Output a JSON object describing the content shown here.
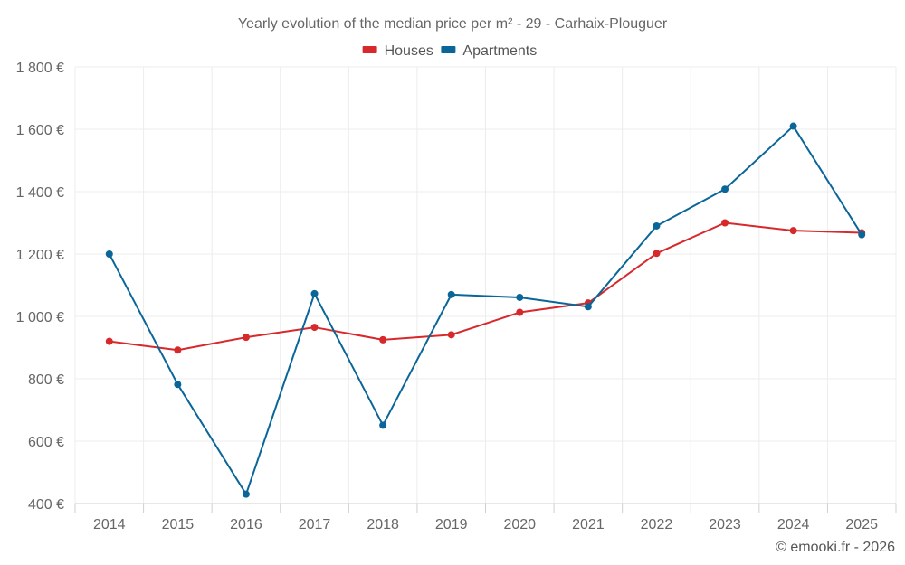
{
  "chart_data": {
    "type": "line",
    "title": "Yearly evolution of the median price per m² - 29 - Carhaix-Plouguer",
    "categories": [
      "2014",
      "2015",
      "2016",
      "2017",
      "2018",
      "2019",
      "2020",
      "2021",
      "2022",
      "2023",
      "2024",
      "2025"
    ],
    "series": [
      {
        "name": "Houses",
        "color": "#d7292c",
        "values": [
          920,
          892,
          933,
          965,
          925,
          941,
          1013,
          1043,
          1202,
          1300,
          1275,
          1268
        ]
      },
      {
        "name": "Apartments",
        "color": "#0a6699",
        "values": [
          1200,
          782,
          430,
          1073,
          651,
          1070,
          1061,
          1031,
          1290,
          1408,
          1610,
          1262
        ]
      }
    ],
    "ylim": [
      400,
      1800
    ],
    "yticks": [
      400,
      600,
      800,
      1000,
      1200,
      1400,
      1600,
      1800
    ],
    "ytick_labels": [
      "400 €",
      "600 €",
      "800 €",
      "1 000 €",
      "1 200 €",
      "1 400 €",
      "1 600 €",
      "1 800 €"
    ],
    "xlabel": "",
    "ylabel": "",
    "legend_position": "top-center",
    "grid": true
  },
  "credit": "© emooki.fr - 2026"
}
